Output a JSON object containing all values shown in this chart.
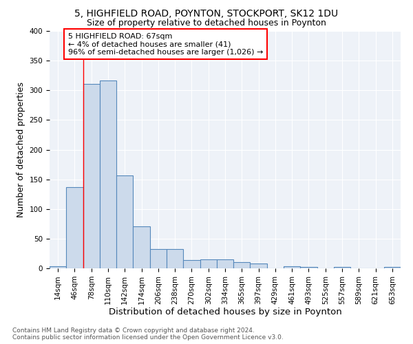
{
  "title1": "5, HIGHFIELD ROAD, POYNTON, STOCKPORT, SK12 1DU",
  "title2": "Size of property relative to detached houses in Poynton",
  "xlabel": "Distribution of detached houses by size in Poynton",
  "ylabel": "Number of detached properties",
  "footnote": "Contains HM Land Registry data © Crown copyright and database right 2024.\nContains public sector information licensed under the Open Government Licence v3.0.",
  "bin_labels": [
    "14sqm",
    "46sqm",
    "78sqm",
    "110sqm",
    "142sqm",
    "174sqm",
    "206sqm",
    "238sqm",
    "270sqm",
    "302sqm",
    "334sqm",
    "365sqm",
    "397sqm",
    "429sqm",
    "461sqm",
    "493sqm",
    "525sqm",
    "557sqm",
    "589sqm",
    "621sqm",
    "653sqm"
  ],
  "bar_values": [
    4,
    137,
    311,
    316,
    157,
    71,
    32,
    32,
    14,
    15,
    15,
    10,
    8,
    0,
    4,
    2,
    0,
    2,
    0,
    0,
    2
  ],
  "bar_color": "#ccdaeb",
  "bar_edge_color": "#5588bb",
  "property_line_x": 1.5,
  "annotation_text": "5 HIGHFIELD ROAD: 67sqm\n← 4% of detached houses are smaller (41)\n96% of semi-detached houses are larger (1,026) →",
  "annotation_box_color": "white",
  "annotation_box_edge_color": "red",
  "vline_color": "red",
  "ylim": [
    0,
    400
  ],
  "yticks": [
    0,
    50,
    100,
    150,
    200,
    250,
    300,
    350,
    400
  ],
  "bg_color": "#eef2f8",
  "grid_color": "white",
  "title1_fontsize": 10,
  "title2_fontsize": 9,
  "axis_label_fontsize": 9,
  "tick_fontsize": 7.5,
  "footnote_fontsize": 6.5
}
